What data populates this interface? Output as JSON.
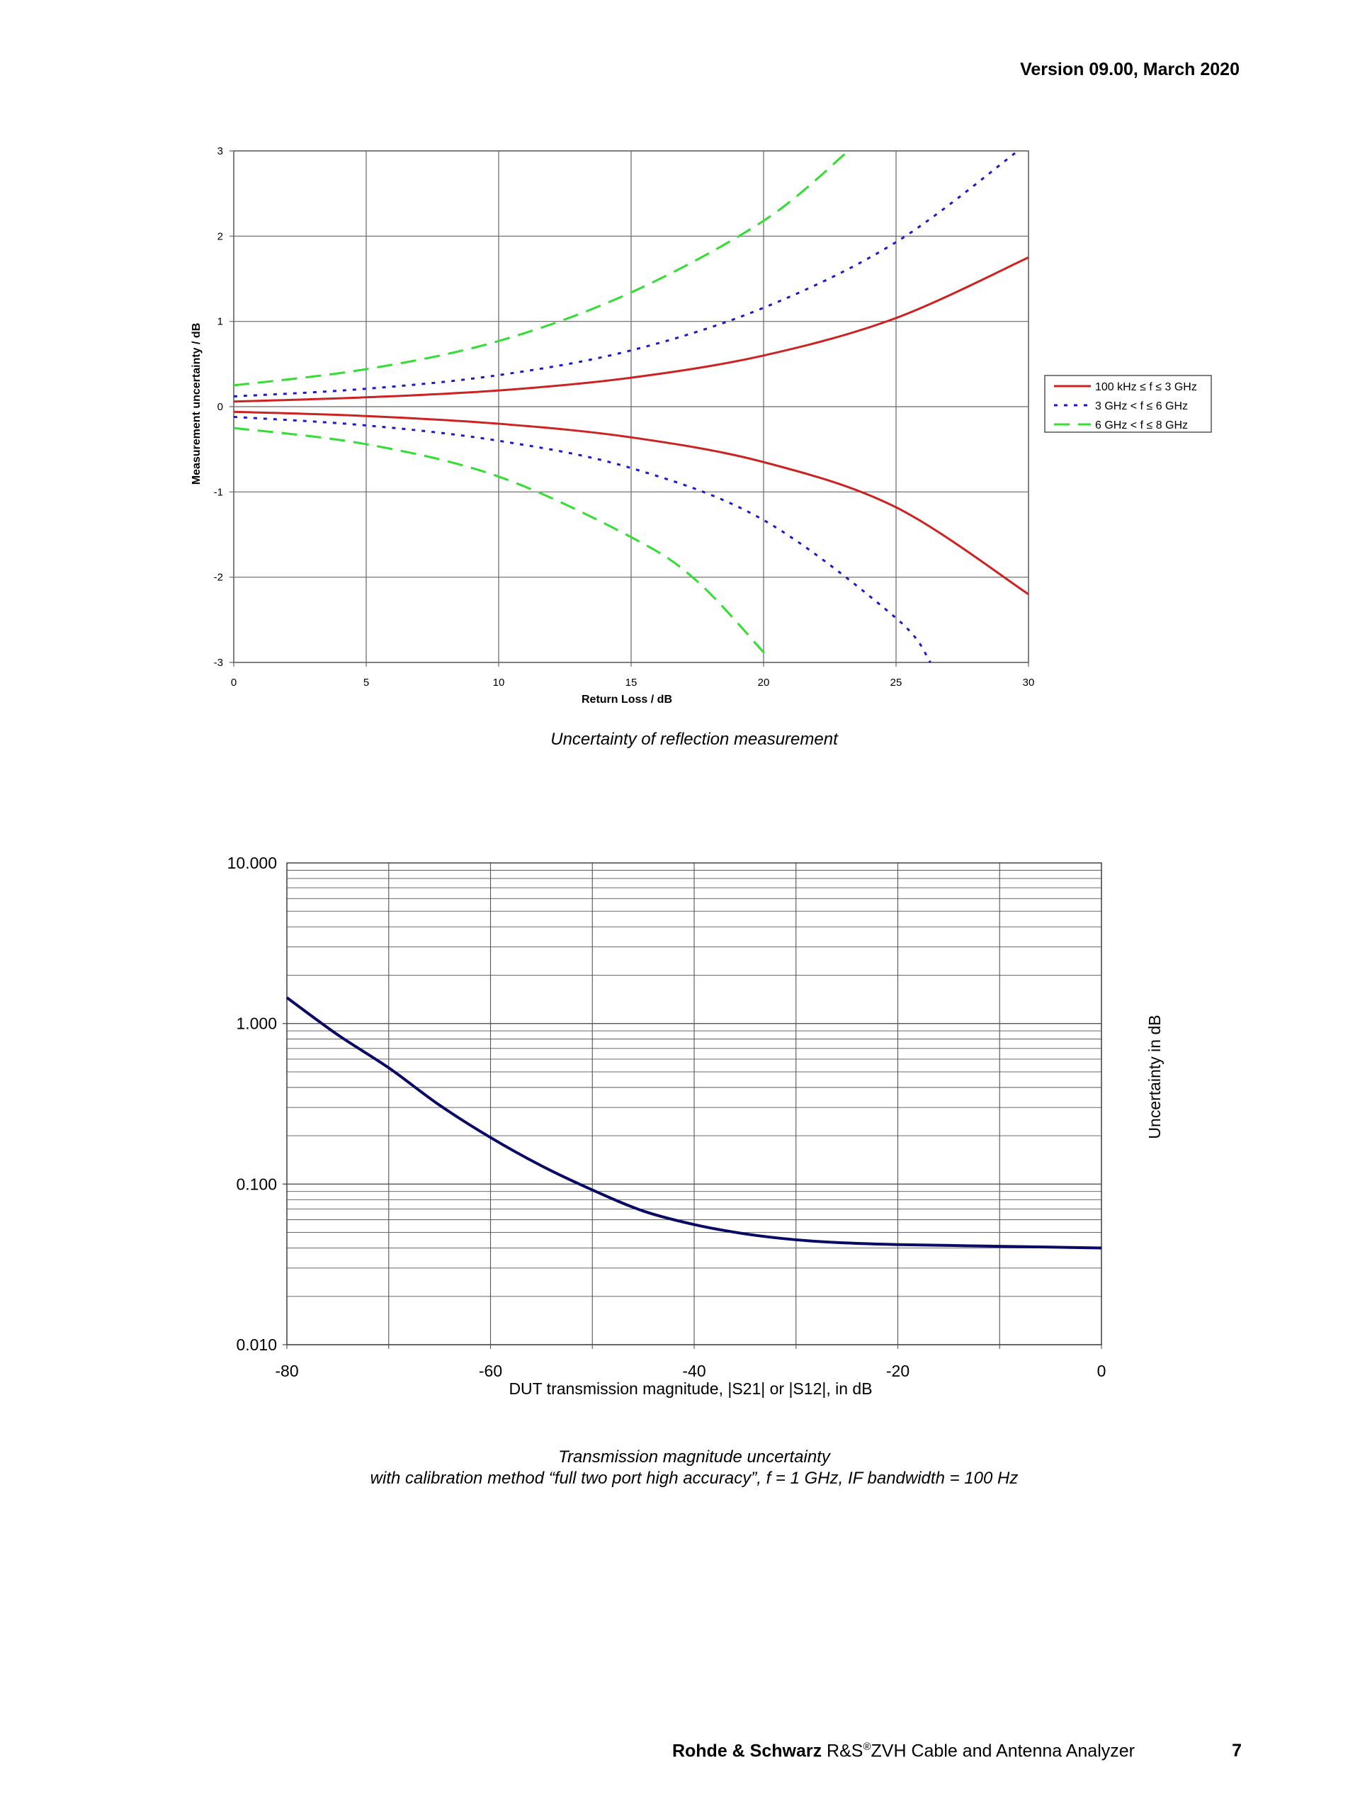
{
  "header": {
    "version": "Version 09.00, March 2020"
  },
  "captions": {
    "reflection": "Uncertainty of reflection measurement",
    "transmission_line1": "Transmission magnitude uncertainty",
    "transmission_line2": "with calibration method “full two port high accuracy”, f = 1 GHz, IF bandwidth = 100 Hz"
  },
  "footer": {
    "company": "Rohde & Schwarz",
    "product_prefix": " R&S",
    "registered": "®",
    "product_suffix": "ZVH Cable and Antenna Analyzer",
    "page_number": "7"
  },
  "chart_data": [
    {
      "type": "line",
      "xlabel": "Return Loss / dB",
      "ylabel": "Measurement uncertainty / dB",
      "xlim": [
        0,
        30
      ],
      "ylim": [
        -3,
        3
      ],
      "xticks": [
        "0",
        "5",
        "10",
        "15",
        "20",
        "25",
        "30"
      ],
      "yticks": [
        "3",
        "2",
        "1",
        "0",
        "-1",
        "-2",
        "-3"
      ],
      "grid": true,
      "legend_position": "right",
      "x": [
        0,
        5,
        10,
        15,
        20,
        25,
        30
      ],
      "series": [
        {
          "name": "100 kHz ≤ f ≤ 3 GHz",
          "color": "#cc2222",
          "dash": "solid",
          "upper": [
            0.06,
            0.11,
            0.19,
            0.34,
            0.6,
            1.04,
            1.75
          ],
          "lower": [
            -0.06,
            -0.11,
            -0.2,
            -0.36,
            -0.65,
            -1.18,
            -2.2
          ]
        },
        {
          "name": "3 GHz < f ≤ 6 GHz",
          "color": "#1a1acc",
          "dash": "dotted",
          "x_upper": [
            0,
            5,
            10,
            15,
            20,
            25,
            29.6
          ],
          "upper": [
            0.12,
            0.21,
            0.37,
            0.66,
            1.16,
            1.93,
            3.0
          ],
          "x_lower": [
            0,
            5,
            10,
            15,
            20,
            25,
            26.3
          ],
          "lower": [
            -0.12,
            -0.22,
            -0.4,
            -0.72,
            -1.33,
            -2.48,
            -3.0
          ]
        },
        {
          "name": "6 GHz < f ≤ 8 GHz",
          "color": "#33dd33",
          "dash": "dashed",
          "x_upper": [
            0,
            5,
            10,
            15,
            20,
            23.2
          ],
          "upper": [
            0.25,
            0.44,
            0.77,
            1.34,
            2.18,
            3.0
          ],
          "x_lower": [
            0,
            5,
            10,
            15,
            17.5,
            20.2
          ],
          "lower": [
            -0.25,
            -0.44,
            -0.82,
            -1.53,
            -2.05,
            -2.95
          ]
        }
      ]
    },
    {
      "type": "line",
      "xlabel": "DUT transmission magnitude, |S21| or |S12|, in dB",
      "ylabel": "Uncertainty in dB",
      "yscale": "log",
      "xlim": [
        -80,
        0
      ],
      "ylim": [
        0.01,
        10
      ],
      "xticks": [
        "-80",
        "-60",
        "-40",
        "-20",
        "0"
      ],
      "yticks": [
        "10.000",
        "1.000",
        "0.100",
        "0.010"
      ],
      "grid": true,
      "x": [
        -80,
        -75,
        -70,
        -65,
        -60,
        -55,
        -50,
        -45,
        -40,
        -35,
        -30,
        -25,
        -20,
        -15,
        -10,
        -5,
        0
      ],
      "series": [
        {
          "name": "",
          "color": "#0a0a66",
          "values": [
            1.45,
            0.85,
            0.53,
            0.31,
            0.195,
            0.13,
            0.092,
            0.068,
            0.056,
            0.049,
            0.045,
            0.043,
            0.042,
            0.0415,
            0.041,
            0.0405,
            0.04
          ]
        }
      ]
    }
  ]
}
